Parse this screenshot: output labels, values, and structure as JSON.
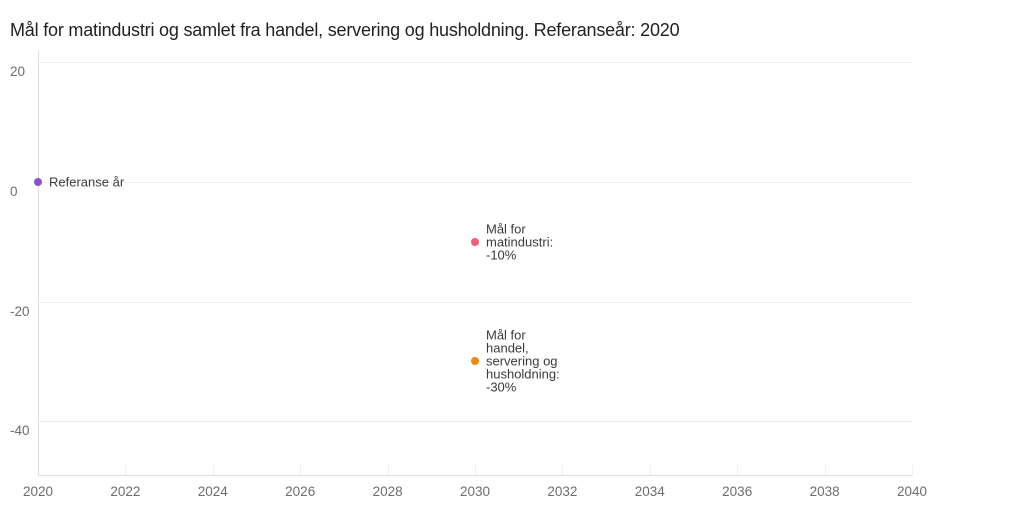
{
  "title": "Mål for matindustri og samlet fra handel, servering og husholdning. Referanseår: 2020",
  "colors": {
    "background": "#ffffff",
    "grid": "#ececec",
    "axis": "#dedede",
    "tick_label": "#6d6d6d",
    "annotation_text": "#3b3b3b",
    "title_text": "#222222",
    "point_referanse": "#8b52c9",
    "point_matindustri": "#e8617e",
    "point_handel": "#ee8a0e"
  },
  "chart_data": {
    "type": "scatter",
    "title": "Mål for matindustri og samlet fra handel, servering og husholdning. Referanseår: 2020",
    "xlabel": "",
    "ylabel": "",
    "xlim": [
      2020,
      2040
    ],
    "ylim": [
      -49,
      21.9
    ],
    "x_ticks": [
      2020,
      2022,
      2024,
      2026,
      2028,
      2030,
      2032,
      2034,
      2036,
      2038,
      2040
    ],
    "y_ticks": [
      20,
      0,
      -20,
      -40
    ],
    "grid": "horizontal",
    "legend": "none",
    "points": [
      {
        "name": "referanse-ar",
        "x": 2020,
        "y": 0,
        "color": "#8b52c9",
        "label": "Referanse år",
        "label_lines": [
          "Referanse år"
        ]
      },
      {
        "name": "mal-for-matindustri",
        "x": 2030,
        "y": -10,
        "color": "#e8617e",
        "label": "Mål for matindustri: -10%",
        "label_lines": [
          "Mål for",
          "matindustri:",
          "-10%"
        ]
      },
      {
        "name": "mal-for-handel-servering-husholdning",
        "x": 2030,
        "y": -30,
        "color": "#ee8a0e",
        "label": "Mål for handel, servering og husholdning: -30%",
        "label_lines": [
          "Mål for",
          "handel,",
          "servering og",
          "husholdning:",
          "-30%"
        ]
      }
    ]
  }
}
